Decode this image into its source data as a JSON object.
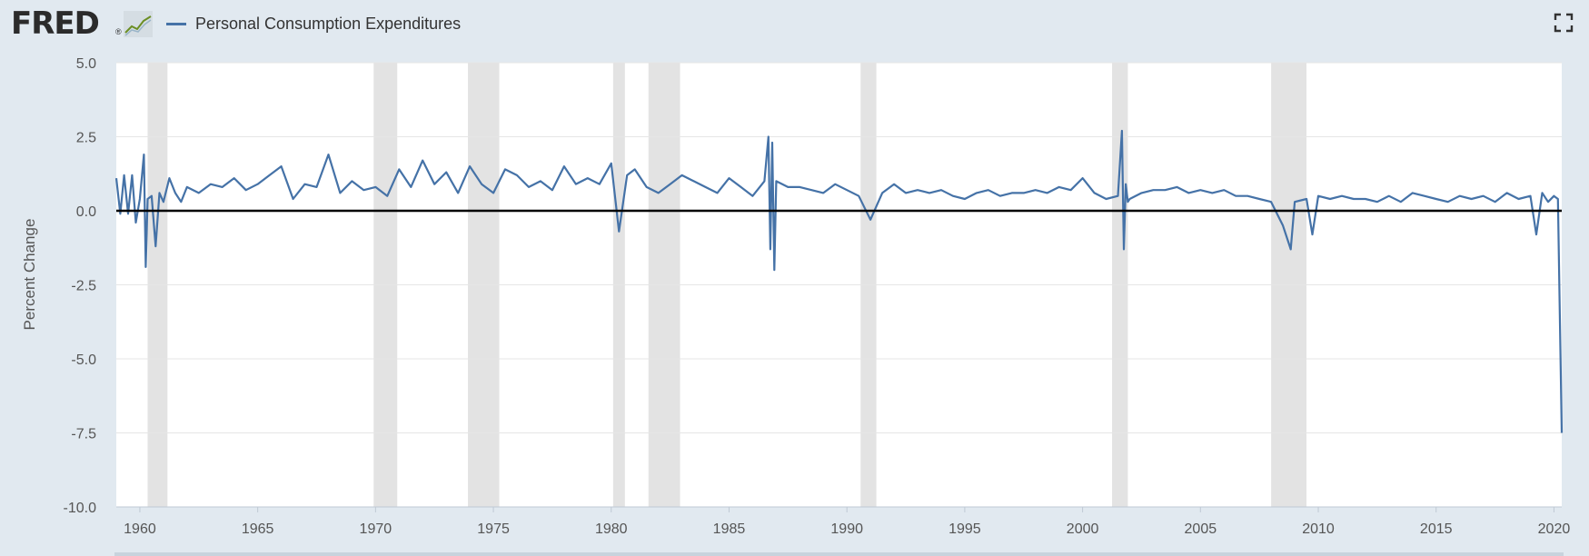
{
  "header": {
    "logo_text": "FRED",
    "logo_mark": "®",
    "legend_label": "Personal Consumption Expenditures",
    "fullscreen_icon": "fullscreen-icon"
  },
  "colors": {
    "series": "#4572a7",
    "recession": "#e3e3e3",
    "background": "#e1e9f0",
    "plot": "#ffffff",
    "zero_line": "#000000"
  },
  "chart_data": {
    "type": "line",
    "title": "",
    "xlabel": "",
    "ylabel": "Percent Change",
    "xlim": [
      1959.0,
      2020.33
    ],
    "ylim": [
      -10.0,
      5.0
    ],
    "y_ticks": [
      "5.0",
      "2.5",
      "0.0",
      "-2.5",
      "-5.0",
      "-7.5",
      "-10.0"
    ],
    "x_ticks": [
      "1960",
      "1965",
      "1970",
      "1975",
      "1980",
      "1985",
      "1990",
      "1995",
      "2000",
      "2005",
      "2010",
      "2015",
      "2020"
    ],
    "grid": true,
    "legend": "top-left",
    "zero_line": true,
    "recessions": [
      [
        1960.33,
        1961.17
      ],
      [
        1969.92,
        1970.92
      ],
      [
        1973.92,
        1975.25
      ],
      [
        1980.08,
        1980.58
      ],
      [
        1981.58,
        1982.92
      ],
      [
        1990.58,
        1991.25
      ],
      [
        2001.25,
        2001.92
      ],
      [
        2008.0,
        2009.5
      ]
    ],
    "series": [
      {
        "name": "Personal Consumption Expenditures",
        "x": [
          1959.0,
          1959.17,
          1959.33,
          1959.5,
          1959.67,
          1959.83,
          1960.0,
          1960.17,
          1960.25,
          1960.33,
          1960.5,
          1960.67,
          1960.83,
          1961.0,
          1961.25,
          1961.5,
          1961.75,
          1962.0,
          1962.5,
          1963.0,
          1963.5,
          1964.0,
          1964.5,
          1965.0,
          1965.5,
          1966.0,
          1966.5,
          1967.0,
          1967.5,
          1968.0,
          1968.5,
          1969.0,
          1969.5,
          1970.0,
          1970.5,
          1971.0,
          1971.5,
          1972.0,
          1972.5,
          1973.0,
          1973.5,
          1974.0,
          1974.5,
          1975.0,
          1975.5,
          1976.0,
          1976.5,
          1977.0,
          1977.5,
          1978.0,
          1978.5,
          1979.0,
          1979.5,
          1980.0,
          1980.33,
          1980.67,
          1981.0,
          1981.5,
          1982.0,
          1982.5,
          1983.0,
          1983.5,
          1984.0,
          1984.5,
          1985.0,
          1985.5,
          1986.0,
          1986.5,
          1986.67,
          1986.75,
          1986.83,
          1986.92,
          1987.0,
          1987.5,
          1988.0,
          1988.5,
          1989.0,
          1989.5,
          1990.0,
          1990.5,
          1991.0,
          1991.5,
          1992.0,
          1992.5,
          1993.0,
          1993.5,
          1994.0,
          1994.5,
          1995.0,
          1995.5,
          1996.0,
          1996.5,
          1997.0,
          1997.5,
          1998.0,
          1998.5,
          1999.0,
          1999.5,
          2000.0,
          2000.5,
          2001.0,
          2001.5,
          2001.67,
          2001.75,
          2001.83,
          2001.92,
          2002.0,
          2002.5,
          2003.0,
          2003.5,
          2004.0,
          2004.5,
          2005.0,
          2005.5,
          2006.0,
          2006.5,
          2007.0,
          2007.5,
          2008.0,
          2008.5,
          2008.83,
          2009.0,
          2009.5,
          2009.75,
          2010.0,
          2010.5,
          2011.0,
          2011.5,
          2012.0,
          2012.5,
          2013.0,
          2013.5,
          2014.0,
          2014.5,
          2015.0,
          2015.5,
          2016.0,
          2016.5,
          2017.0,
          2017.5,
          2018.0,
          2018.5,
          2019.0,
          2019.25,
          2019.5,
          2019.75,
          2020.0,
          2020.17,
          2020.33
        ],
        "values": [
          1.1,
          -0.1,
          1.2,
          -0.1,
          1.2,
          -0.4,
          0.4,
          1.9,
          -1.9,
          0.4,
          0.5,
          -1.2,
          0.6,
          0.3,
          1.1,
          0.6,
          0.3,
          0.8,
          0.6,
          0.9,
          0.8,
          1.1,
          0.7,
          0.9,
          1.2,
          1.5,
          0.4,
          0.9,
          0.8,
          1.9,
          0.6,
          1.0,
          0.7,
          0.8,
          0.5,
          1.4,
          0.8,
          1.7,
          0.9,
          1.3,
          0.6,
          1.5,
          0.9,
          0.6,
          1.4,
          1.2,
          0.8,
          1.0,
          0.7,
          1.5,
          0.9,
          1.1,
          0.9,
          1.6,
          -0.7,
          1.2,
          1.4,
          0.8,
          0.6,
          0.9,
          1.2,
          1.0,
          0.8,
          0.6,
          1.1,
          0.8,
          0.5,
          1.0,
          2.5,
          -1.3,
          2.3,
          -2.0,
          1.0,
          0.8,
          0.8,
          0.7,
          0.6,
          0.9,
          0.7,
          0.5,
          -0.3,
          0.6,
          0.9,
          0.6,
          0.7,
          0.6,
          0.7,
          0.5,
          0.4,
          0.6,
          0.7,
          0.5,
          0.6,
          0.6,
          0.7,
          0.6,
          0.8,
          0.7,
          1.1,
          0.6,
          0.4,
          0.5,
          2.7,
          -1.3,
          0.9,
          0.3,
          0.4,
          0.6,
          0.7,
          0.7,
          0.8,
          0.6,
          0.7,
          0.6,
          0.7,
          0.5,
          0.5,
          0.4,
          0.3,
          -0.5,
          -1.3,
          0.3,
          0.4,
          -0.8,
          0.5,
          0.4,
          0.5,
          0.4,
          0.4,
          0.3,
          0.5,
          0.3,
          0.6,
          0.5,
          0.4,
          0.3,
          0.5,
          0.4,
          0.5,
          0.3,
          0.6,
          0.4,
          0.5,
          -0.8,
          0.6,
          0.3,
          0.5,
          0.4,
          -7.5
        ]
      }
    ]
  }
}
